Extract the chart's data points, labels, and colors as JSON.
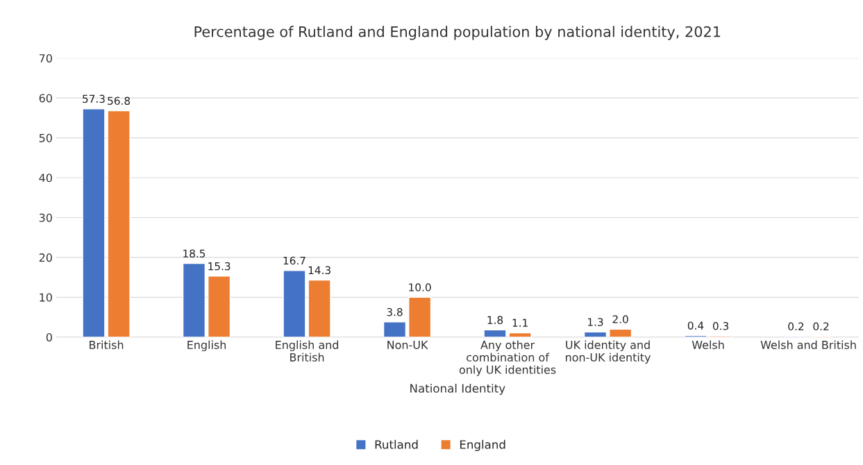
{
  "chart_data": {
    "type": "bar",
    "title": "Percentage of Rutland and England population by national identity, 2021",
    "xlabel": "National Identity",
    "categories": [
      "British",
      "English",
      "English and\nBritish",
      "Non-UK",
      "Any other\ncombination of\nonly UK identities",
      "UK identity and\nnon-UK identity",
      "Welsh",
      "Welsh and British"
    ],
    "series": [
      {
        "name": "Rutland",
        "color": "#4472c4",
        "values": [
          57.3,
          18.5,
          16.7,
          3.8,
          1.8,
          1.3,
          0.4,
          0.2
        ],
        "value_labels": [
          "57.3",
          "18.5",
          "16.7",
          "3.8",
          "1.8",
          "1.3",
          "0.4",
          "0.2"
        ]
      },
      {
        "name": "England",
        "color": "#ed7d31",
        "values": [
          56.8,
          15.3,
          14.3,
          10.0,
          1.1,
          2.0,
          0.3,
          0.2
        ],
        "value_labels": [
          "56.8",
          "15.3",
          "14.3",
          "10.0",
          "1.1",
          "2.0",
          "0.3",
          "0.2"
        ]
      }
    ],
    "ylim": [
      0,
      70
    ],
    "yticks": [
      0,
      10,
      20,
      30,
      40,
      50,
      60,
      70
    ],
    "grid": "y",
    "legend": "bottom"
  }
}
